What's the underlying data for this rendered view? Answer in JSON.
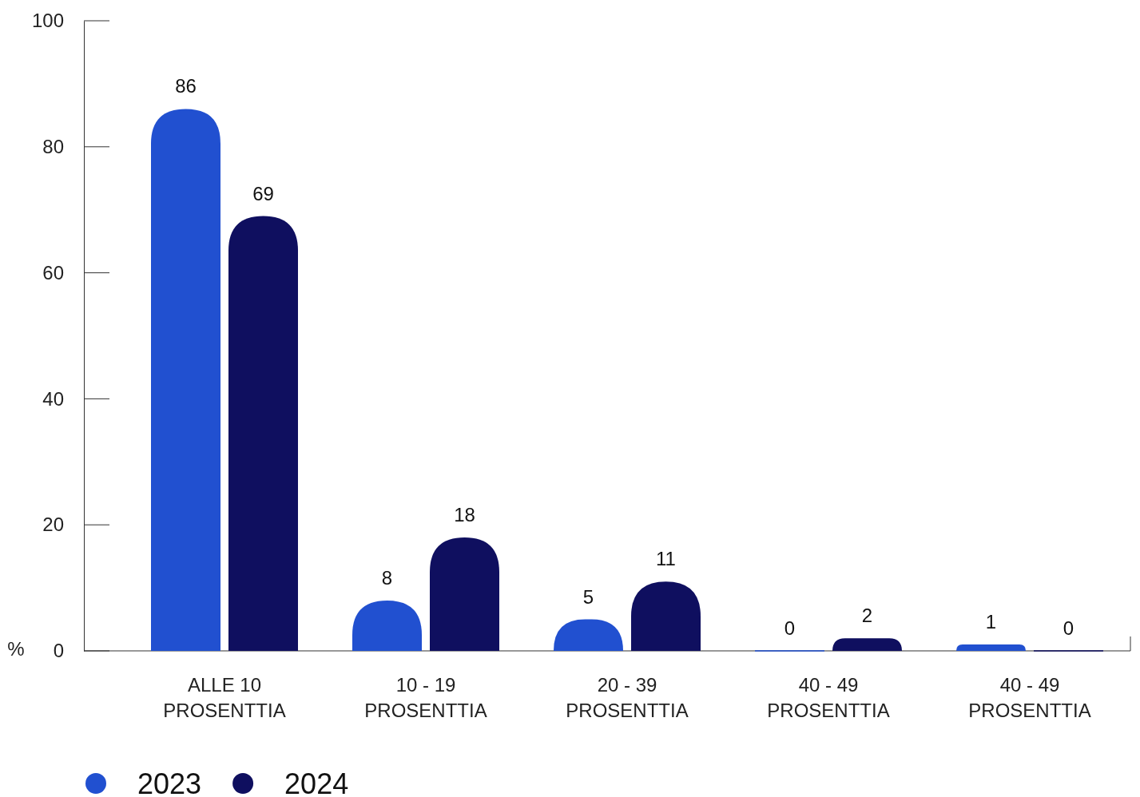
{
  "chart_data": {
    "type": "bar",
    "ylabel": "%",
    "categories": [
      "ALLE 10 PROSENTTIA",
      "10 - 19 PROSENTTIA",
      "20 - 39 PROSENTTIA",
      "40 - 49 PROSENTTIA",
      "40 - 49 PROSENTTIA"
    ],
    "series": [
      {
        "name": "2023",
        "color": "#2150d0",
        "values": [
          86,
          8,
          5,
          0,
          1
        ]
      },
      {
        "name": "2024",
        "color": "#0f0f5f",
        "values": [
          69,
          18,
          11,
          2,
          0
        ]
      }
    ],
    "ylim": [
      0,
      100
    ],
    "yticks": [
      0,
      20,
      40,
      60,
      80,
      100
    ],
    "grid": false,
    "data_labels": true,
    "legend": "bottom left"
  }
}
